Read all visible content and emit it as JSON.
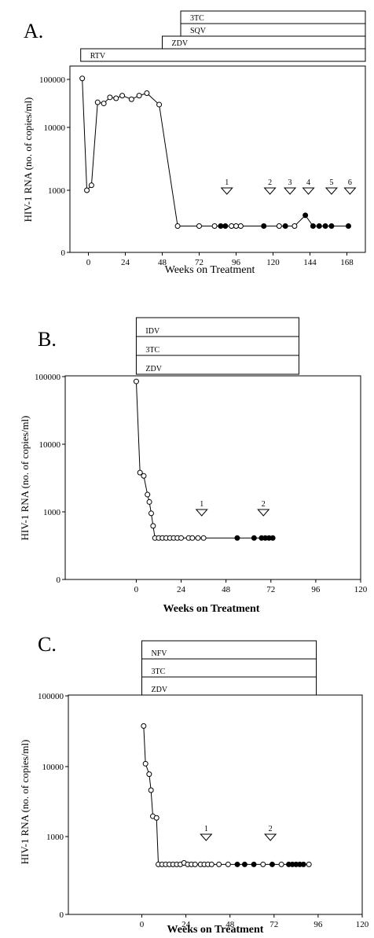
{
  "chart_data": [
    {
      "type": "scatter",
      "panel": "A.",
      "xlabel": "Weeks on Treatment",
      "ylabel": "HIV-1 RNA (no. of copies/ml)",
      "xticks": [
        "0",
        "24",
        "48",
        "72",
        "96",
        "120",
        "144",
        "168"
      ],
      "yticks": [
        "100000",
        "10000",
        "1000",
        "0"
      ],
      "xlim": [
        -12,
        180
      ],
      "yscale": "log (0 shown as baseline below 1000)",
      "drugs": [
        {
          "name": "3TC",
          "start": 60,
          "end": 180
        },
        {
          "name": "SQV",
          "start": 60,
          "end": 180
        },
        {
          "name": "ZDV",
          "start": 48,
          "end": 180
        },
        {
          "name": "RTV",
          "start": -5,
          "end": 180
        }
      ],
      "series": [
        {
          "values": [
            [
              -4,
              60000,
              "open"
            ],
            [
              -1,
              1000,
              "open"
            ],
            [
              2,
              1200,
              "open"
            ],
            [
              6,
              25000,
              "open"
            ],
            [
              10,
              24000,
              "open"
            ],
            [
              14,
              30000,
              "open"
            ],
            [
              18,
              29000,
              "open"
            ],
            [
              22,
              32000,
              "open"
            ],
            [
              28,
              28000,
              "open"
            ],
            [
              33,
              32000,
              "open"
            ],
            [
              38,
              35000,
              "open"
            ],
            [
              46,
              23000,
              "open"
            ],
            [
              58,
              270,
              "open"
            ],
            [
              72,
              270,
              "open"
            ],
            [
              82,
              270,
              "open"
            ],
            [
              86,
              270,
              "filled"
            ],
            [
              89,
              270,
              "filled"
            ],
            [
              93,
              270,
              "open"
            ],
            [
              96,
              270,
              "open"
            ],
            [
              99,
              270,
              "open"
            ],
            [
              114,
              270,
              "filled"
            ],
            [
              124,
              270,
              "open"
            ],
            [
              128,
              270,
              "filled"
            ],
            [
              134,
              270,
              "open"
            ],
            [
              141,
              400,
              "filled"
            ],
            [
              146,
              270,
              "filled"
            ],
            [
              150,
              270,
              "filled"
            ],
            [
              154,
              270,
              "filled"
            ],
            [
              158,
              270,
              "filled"
            ],
            [
              169,
              270,
              "filled"
            ]
          ]
        }
      ],
      "markers": [
        {
          "label": "1",
          "week": 90
        },
        {
          "label": "2",
          "week": 118
        },
        {
          "label": "3",
          "week": 131
        },
        {
          "label": "4",
          "week": 143
        },
        {
          "label": "5",
          "week": 158
        },
        {
          "label": "6",
          "week": 170
        }
      ],
      "marker_level": 1000
    },
    {
      "type": "scatter",
      "panel": "B.",
      "xlabel": "Weeks on Treatment",
      "ylabel": "HIV-1 RNA (no. of copies/ml)",
      "xticks": [
        "0",
        "24",
        "48",
        "72",
        "96",
        "120"
      ],
      "yticks": [
        "100000",
        "10000",
        "1000",
        "0"
      ],
      "xlim": [
        -38,
        120
      ],
      "yscale": "log (0 shown as baseline below 1000)",
      "drugs": [
        {
          "name": "IDV",
          "start": 0,
          "end": 87
        },
        {
          "name": "3TC",
          "start": 0,
          "end": 87
        },
        {
          "name": "ZDV",
          "start": 0,
          "end": 87
        }
      ],
      "series": [
        {
          "values": [
            [
              0,
              85000,
              "open"
            ],
            [
              2,
              3800,
              "open"
            ],
            [
              4,
              3400,
              "open"
            ],
            [
              6,
              1800,
              "open"
            ],
            [
              7,
              1400,
              "open"
            ],
            [
              8,
              950,
              "open"
            ],
            [
              9,
              620,
              "open"
            ],
            [
              10,
              410,
              "open"
            ],
            [
              12,
              410,
              "open"
            ],
            [
              14,
              410,
              "open"
            ],
            [
              16,
              410,
              "open"
            ],
            [
              18,
              410,
              "open"
            ],
            [
              20,
              410,
              "open"
            ],
            [
              22,
              410,
              "open"
            ],
            [
              24,
              410,
              "open"
            ],
            [
              28,
              410,
              "open"
            ],
            [
              30,
              410,
              "open"
            ],
            [
              33,
              410,
              "open"
            ],
            [
              36,
              410,
              "open"
            ],
            [
              54,
              410,
              "filled"
            ],
            [
              63,
              410,
              "filled"
            ],
            [
              67,
              410,
              "filled"
            ],
            [
              69,
              410,
              "filled"
            ],
            [
              71,
              410,
              "filled"
            ],
            [
              73,
              410,
              "filled"
            ]
          ]
        }
      ],
      "markers": [
        {
          "label": "1",
          "week": 35
        },
        {
          "label": "2",
          "week": 68
        }
      ],
      "marker_level": 1000
    },
    {
      "type": "scatter",
      "panel": "C.",
      "xlabel": "Weeks on Treatment",
      "ylabel": "HIV-1 RNA (no. of copies/ml)",
      "xticks": [
        "0",
        "24",
        "48",
        "72",
        "96",
        "120"
      ],
      "yticks": [
        "100000",
        "10000",
        "1000",
        "0"
      ],
      "xlim": [
        -40,
        120
      ],
      "yscale": "log (0 shown as baseline below 1000)",
      "drugs": [
        {
          "name": "NFV",
          "start": 0,
          "end": 95
        },
        {
          "name": "3TC",
          "start": 0,
          "end": 95
        },
        {
          "name": "ZDV",
          "start": 0,
          "end": 95
        }
      ],
      "series": [
        {
          "values": [
            [
              1,
              38000,
              "open"
            ],
            [
              2,
              11000,
              "open"
            ],
            [
              4,
              7800,
              "open"
            ],
            [
              5,
              4600,
              "open"
            ],
            [
              6,
              1950,
              "open"
            ],
            [
              8,
              1850,
              "open"
            ],
            [
              9,
              400,
              "open"
            ],
            [
              11,
              400,
              "open"
            ],
            [
              13,
              400,
              "open"
            ],
            [
              15,
              400,
              "open"
            ],
            [
              17,
              400,
              "open"
            ],
            [
              19,
              400,
              "open"
            ],
            [
              21,
              400,
              "open"
            ],
            [
              23,
              420,
              "open"
            ],
            [
              25,
              400,
              "open"
            ],
            [
              27,
              400,
              "open"
            ],
            [
              29,
              400,
              "open"
            ],
            [
              32,
              400,
              "open"
            ],
            [
              34,
              400,
              "open"
            ],
            [
              36,
              400,
              "open"
            ],
            [
              38,
              400,
              "open"
            ],
            [
              42,
              400,
              "open"
            ],
            [
              47,
              400,
              "open"
            ],
            [
              52,
              400,
              "filled"
            ],
            [
              56,
              400,
              "filled"
            ],
            [
              61,
              400,
              "filled"
            ],
            [
              66,
              400,
              "open"
            ],
            [
              71,
              400,
              "filled"
            ],
            [
              76,
              400,
              "open"
            ],
            [
              80,
              400,
              "filled"
            ],
            [
              82,
              400,
              "filled"
            ],
            [
              84,
              400,
              "filled"
            ],
            [
              86,
              400,
              "filled"
            ],
            [
              88,
              400,
              "filled"
            ],
            [
              91,
              400,
              "open"
            ]
          ]
        }
      ],
      "markers": [
        {
          "label": "1",
          "week": 35
        },
        {
          "label": "2",
          "week": 70
        }
      ],
      "marker_level": 1000
    }
  ]
}
